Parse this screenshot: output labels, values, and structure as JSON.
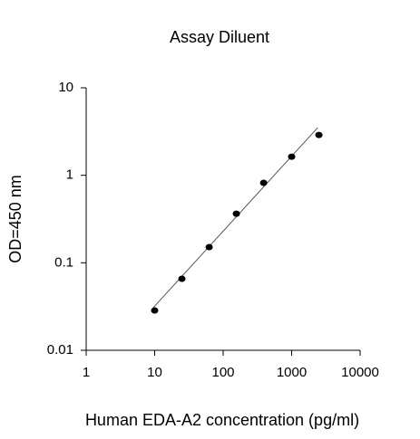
{
  "chart_data": {
    "type": "scatter",
    "title": "Assay Diluent",
    "x_label": "Human EDA-A2 concentration (pg/ml)",
    "y_label": "OD=450 nm",
    "x_scale": "log",
    "y_scale": "log",
    "xlim": [
      1,
      10000
    ],
    "ylim": [
      0.01,
      10
    ],
    "xticks": [
      1,
      10,
      100,
      1000,
      10000
    ],
    "yticks": [
      0.01,
      0.1,
      1,
      10
    ],
    "points": {
      "color": "#000000",
      "x": [
        10,
        25,
        62.5,
        156,
        390,
        1000,
        2500
      ],
      "y": [
        0.0285,
        0.0656,
        0.151,
        0.364,
        0.82,
        1.63,
        2.89
      ]
    },
    "fit_line": {
      "color": "#555555",
      "x": [
        9.5,
        2400
      ],
      "y": [
        0.0306,
        3.5
      ]
    }
  }
}
